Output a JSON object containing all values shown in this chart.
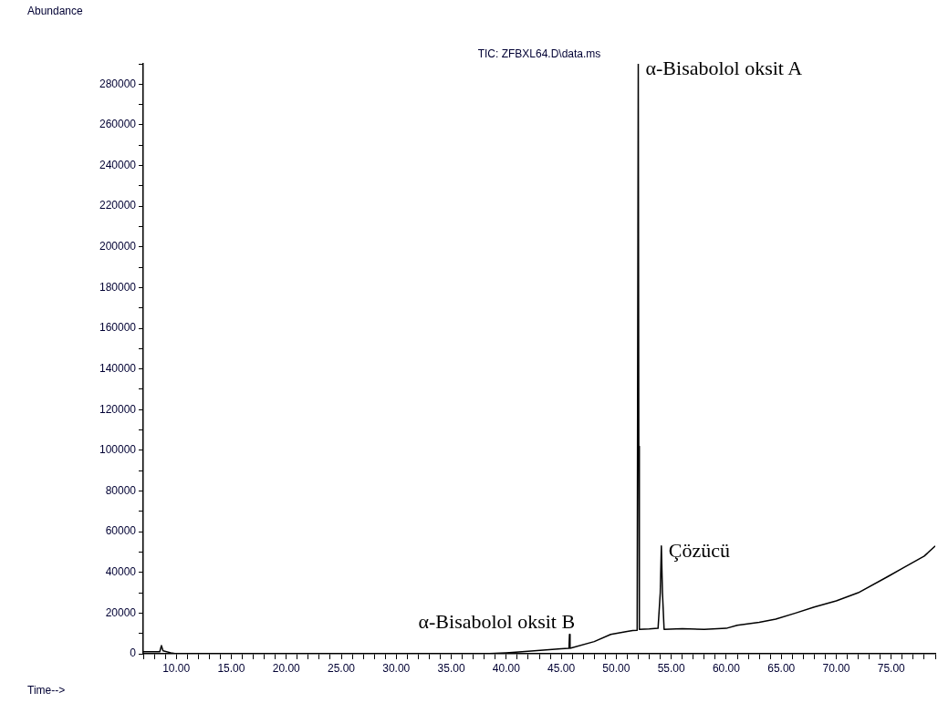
{
  "chart_data": {
    "type": "line",
    "title": "TIC: ZFBXL64.D\\data.ms",
    "xlabel": "Time-->",
    "ylabel": "Abundance",
    "x": [
      7,
      8.5,
      8.65,
      8.8,
      9.5,
      10,
      20,
      30,
      38,
      40,
      42,
      45,
      45.7,
      45.75,
      45.8,
      48,
      49.5,
      51,
      51.5,
      51.9,
      52.0,
      52.05,
      52.1,
      53,
      53.8,
      54.0,
      54.1,
      54.2,
      54.35,
      56,
      58,
      60,
      61,
      63,
      64.5,
      66.3,
      68,
      70,
      72,
      74.7,
      76,
      78,
      79
    ],
    "series": [
      {
        "color": "#000000",
        "values": [
          1000,
          1000,
          4000,
          1500,
          500,
          0,
          0,
          0,
          0,
          500,
          1200,
          2500,
          2700,
          9500,
          2700,
          6000,
          9500,
          11000,
          11400,
          11500,
          290000,
          102000,
          12000,
          12200,
          12500,
          30000,
          53000,
          30000,
          12000,
          12300,
          12000,
          12500,
          14000,
          15500,
          17000,
          20000,
          23000,
          26000,
          30000,
          38000,
          42000,
          48000,
          53000
        ]
      }
    ],
    "xlim": [
      7,
      79
    ],
    "xticks": [
      {
        "value": 7,
        "label": null
      },
      {
        "value": 8,
        "label": null
      },
      {
        "value": 9,
        "label": null
      },
      {
        "value": 10,
        "label": "10.00"
      },
      {
        "value": 11,
        "label": null
      },
      {
        "value": 12,
        "label": null
      },
      {
        "value": 13,
        "label": null
      },
      {
        "value": 14,
        "label": null
      },
      {
        "value": 15,
        "label": "15.00"
      },
      {
        "value": 16,
        "label": null
      },
      {
        "value": 17,
        "label": null
      },
      {
        "value": 18,
        "label": null
      },
      {
        "value": 19,
        "label": null
      },
      {
        "value": 20,
        "label": "20.00"
      },
      {
        "value": 21,
        "label": null
      },
      {
        "value": 22,
        "label": null
      },
      {
        "value": 23,
        "label": null
      },
      {
        "value": 24,
        "label": null
      },
      {
        "value": 25,
        "label": "25.00"
      },
      {
        "value": 26,
        "label": null
      },
      {
        "value": 27,
        "label": null
      },
      {
        "value": 28,
        "label": null
      },
      {
        "value": 29,
        "label": null
      },
      {
        "value": 30,
        "label": "30.00"
      },
      {
        "value": 31,
        "label": null
      },
      {
        "value": 32,
        "label": null
      },
      {
        "value": 33,
        "label": null
      },
      {
        "value": 34,
        "label": null
      },
      {
        "value": 35,
        "label": "35.00"
      },
      {
        "value": 36,
        "label": null
      },
      {
        "value": 37,
        "label": null
      },
      {
        "value": 38,
        "label": null
      },
      {
        "value": 39,
        "label": null
      },
      {
        "value": 40,
        "label": "40.00"
      },
      {
        "value": 41,
        "label": null
      },
      {
        "value": 42,
        "label": null
      },
      {
        "value": 43,
        "label": null
      },
      {
        "value": 44,
        "label": null
      },
      {
        "value": 45,
        "label": "45.00"
      },
      {
        "value": 46,
        "label": null
      },
      {
        "value": 47,
        "label": null
      },
      {
        "value": 48,
        "label": null
      },
      {
        "value": 49,
        "label": null
      },
      {
        "value": 50,
        "label": "50.00"
      },
      {
        "value": 51,
        "label": null
      },
      {
        "value": 52,
        "label": null
      },
      {
        "value": 53,
        "label": null
      },
      {
        "value": 54,
        "label": null
      },
      {
        "value": 55,
        "label": "55.00"
      },
      {
        "value": 56,
        "label": null
      },
      {
        "value": 57,
        "label": null
      },
      {
        "value": 58,
        "label": null
      },
      {
        "value": 59,
        "label": null
      },
      {
        "value": 60,
        "label": "60.00"
      },
      {
        "value": 61,
        "label": null
      },
      {
        "value": 62,
        "label": null
      },
      {
        "value": 63,
        "label": null
      },
      {
        "value": 64,
        "label": null
      },
      {
        "value": 65,
        "label": "65.00"
      },
      {
        "value": 66,
        "label": null
      },
      {
        "value": 67,
        "label": null
      },
      {
        "value": 68,
        "label": null
      },
      {
        "value": 69,
        "label": null
      },
      {
        "value": 70,
        "label": "70.00"
      },
      {
        "value": 71,
        "label": null
      },
      {
        "value": 72,
        "label": null
      },
      {
        "value": 73,
        "label": null
      },
      {
        "value": 74,
        "label": null
      },
      {
        "value": 75,
        "label": "75.00"
      },
      {
        "value": 76,
        "label": null
      },
      {
        "value": 77,
        "label": null
      },
      {
        "value": 78,
        "label": null
      },
      {
        "value": 79,
        "label": null
      }
    ],
    "ylim": [
      0,
      290000
    ],
    "yticks": [
      0,
      {
        "value": 10000,
        "label": null
      },
      20000,
      {
        "value": 30000,
        "label": null
      },
      40000,
      {
        "value": 50000,
        "label": null
      },
      60000,
      {
        "value": 70000,
        "label": null
      },
      80000,
      {
        "value": 90000,
        "label": null
      },
      100000,
      {
        "value": 110000,
        "label": null
      },
      120000,
      {
        "value": 130000,
        "label": null
      },
      140000,
      {
        "value": 150000,
        "label": null
      },
      160000,
      {
        "value": 170000,
        "label": null
      },
      180000,
      {
        "value": 190000,
        "label": null
      },
      200000,
      {
        "value": 210000,
        "label": null
      },
      220000,
      {
        "value": 230000,
        "label": null
      },
      240000,
      {
        "value": 250000,
        "label": null
      },
      260000,
      {
        "value": 270000,
        "label": null
      },
      280000,
      {
        "value": 290000,
        "label": null
      }
    ],
    "annotations": [
      {
        "text": "α-Bisabolol oksit A",
        "x": 52,
        "y": 290000
      },
      {
        "text": "Çözücü",
        "x": 54.1,
        "y": 53000
      },
      {
        "text": "α-Bisabolol oksit B",
        "x": 45.75,
        "y": 9500
      }
    ],
    "grid": false,
    "legend": false,
    "marker": "none",
    "line_style": "solid"
  }
}
